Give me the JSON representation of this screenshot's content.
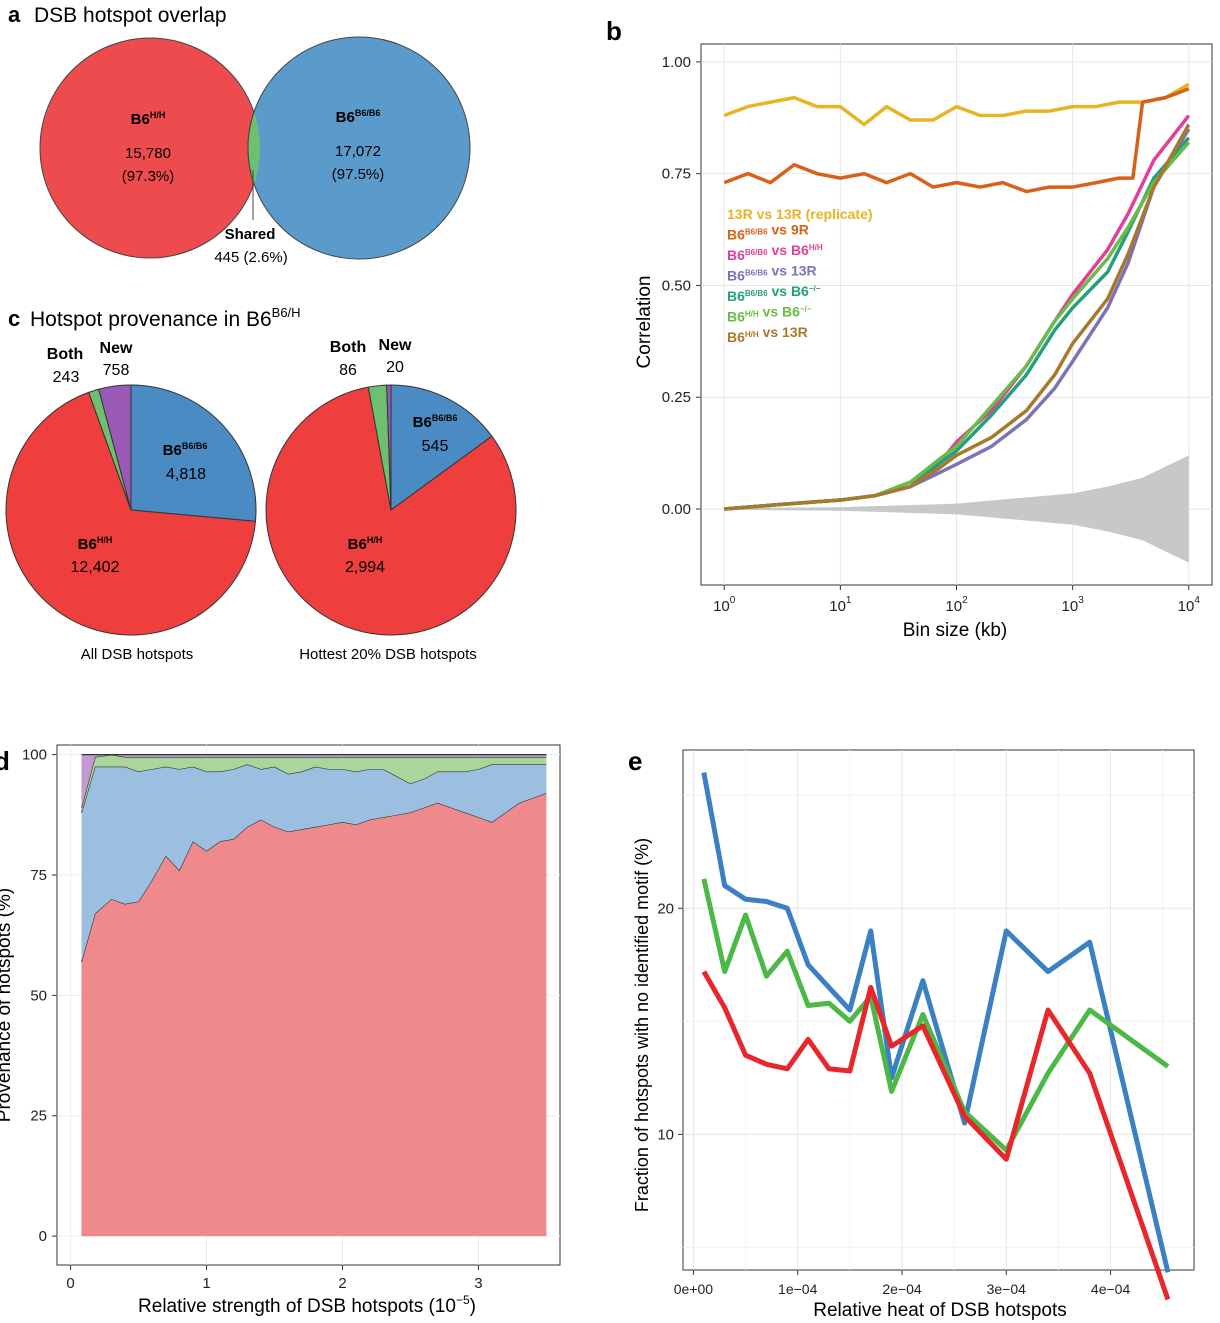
{
  "chart_data": [
    {
      "panel": "a",
      "type": "venn",
      "title": "DSB hotspot overlap",
      "sets": [
        {
          "name_base": "B6",
          "name_sup": "H/H",
          "count": "15,780",
          "pct": "(97.3%)",
          "color": "#ee4b4e"
        },
        {
          "name_base": "B6",
          "name_sup": "B6/B6",
          "count": "17,072",
          "pct": "(97.5%)",
          "color": "#5a9bcc"
        }
      ],
      "overlap": {
        "label": "Shared",
        "value": "445 (2.6%)",
        "color": "#6cc070"
      }
    },
    {
      "panel": "b",
      "type": "line",
      "xlabel": "Bin size (kb)",
      "ylabel": "Correlation",
      "x_scale": "log10",
      "xlim": [
        1,
        10000
      ],
      "ylim": [
        -0.17,
        1.0
      ],
      "yticks": [
        "0.00",
        "0.25",
        "0.50",
        "0.75",
        "1.00"
      ],
      "ytick_values": [
        0,
        0.25,
        0.5,
        0.75,
        1.0
      ],
      "xtick_values": [
        1,
        10,
        100,
        1000,
        10000
      ],
      "xtick_base": "10",
      "xtick_exps": [
        "0",
        "1",
        "2",
        "3",
        "4"
      ],
      "grid": true,
      "legend_position": "upper-left",
      "series": [
        {
          "name": "13R vs 13R (replicate)",
          "color": "#e8b422",
          "x": [
            1,
            1.6,
            2.5,
            4,
            6.3,
            10,
            16,
            25,
            40,
            63,
            100,
            160,
            250,
            400,
            630,
            1000,
            1600,
            2500,
            4000,
            6300,
            10000
          ],
          "y": [
            0.88,
            0.9,
            0.91,
            0.92,
            0.9,
            0.9,
            0.86,
            0.9,
            0.87,
            0.87,
            0.9,
            0.88,
            0.88,
            0.89,
            0.89,
            0.9,
            0.9,
            0.91,
            0.91,
            0.92,
            0.95
          ]
        },
        {
          "name_parts": [
            [
              "B6",
              ""
            ],
            [
              "B6/B6",
              "sup"
            ],
            [
              " vs 9R",
              ""
            ]
          ],
          "color": "#d9601a",
          "x": [
            1,
            1.6,
            2.5,
            4,
            6.3,
            10,
            16,
            25,
            40,
            63,
            100,
            160,
            250,
            400,
            630,
            1000,
            1600,
            2500,
            3300,
            4000,
            6300,
            10000
          ],
          "y": [
            0.73,
            0.75,
            0.73,
            0.77,
            0.75,
            0.74,
            0.75,
            0.73,
            0.75,
            0.72,
            0.73,
            0.72,
            0.73,
            0.71,
            0.72,
            0.72,
            0.73,
            0.74,
            0.74,
            0.91,
            0.92,
            0.94
          ]
        },
        {
          "name_parts": [
            [
              "B6",
              ""
            ],
            [
              "B6/B6",
              "sup"
            ],
            [
              " vs B6",
              ""
            ],
            [
              "H/H",
              "sup"
            ]
          ],
          "color": "#e23f97",
          "x": [
            1,
            3,
            10,
            20,
            40,
            70,
            100,
            200,
            400,
            700,
            1000,
            2000,
            3000,
            5000,
            10000
          ],
          "y": [
            0.0,
            0.01,
            0.02,
            0.03,
            0.05,
            0.1,
            0.15,
            0.22,
            0.32,
            0.42,
            0.48,
            0.58,
            0.66,
            0.78,
            0.88
          ]
        },
        {
          "name_parts": [
            [
              "B6",
              ""
            ],
            [
              "B6/B6",
              "sup"
            ],
            [
              " vs 13R",
              ""
            ]
          ],
          "color": "#7d72b8",
          "x": [
            1,
            3,
            10,
            20,
            40,
            70,
            100,
            200,
            400,
            700,
            1000,
            2000,
            3000,
            5000,
            10000
          ],
          "y": [
            0.0,
            0.01,
            0.02,
            0.03,
            0.05,
            0.08,
            0.1,
            0.14,
            0.2,
            0.27,
            0.33,
            0.45,
            0.55,
            0.72,
            0.85
          ]
        },
        {
          "name_parts": [
            [
              "B6",
              ""
            ],
            [
              "B6/B6",
              "sup"
            ],
            [
              " vs B6",
              ""
            ],
            [
              "−/−",
              "sup"
            ]
          ],
          "color": "#25a07c",
          "x": [
            1,
            3,
            10,
            20,
            40,
            70,
            100,
            200,
            400,
            700,
            1000,
            2000,
            3000,
            5000,
            10000
          ],
          "y": [
            0.0,
            0.01,
            0.02,
            0.03,
            0.06,
            0.1,
            0.13,
            0.21,
            0.3,
            0.4,
            0.45,
            0.53,
            0.62,
            0.74,
            0.83
          ]
        },
        {
          "name_parts": [
            [
              "B6",
              ""
            ],
            [
              "H/H",
              "sup"
            ],
            [
              " vs B6",
              ""
            ],
            [
              "−/−",
              "sup"
            ]
          ],
          "color": "#6bbb4a",
          "x": [
            1,
            3,
            10,
            20,
            40,
            70,
            100,
            200,
            400,
            700,
            1000,
            2000,
            3000,
            5000,
            10000
          ],
          "y": [
            0.0,
            0.01,
            0.02,
            0.03,
            0.06,
            0.11,
            0.14,
            0.23,
            0.32,
            0.42,
            0.47,
            0.56,
            0.63,
            0.73,
            0.82
          ]
        },
        {
          "name_parts": [
            [
              "B6",
              ""
            ],
            [
              "H/H",
              "sup"
            ],
            [
              " vs 13R",
              ""
            ]
          ],
          "color": "#a8792c",
          "x": [
            1,
            3,
            10,
            20,
            40,
            70,
            100,
            200,
            400,
            700,
            1000,
            2000,
            3000,
            5000,
            10000
          ],
          "y": [
            0.0,
            0.01,
            0.02,
            0.03,
            0.05,
            0.09,
            0.12,
            0.16,
            0.22,
            0.3,
            0.37,
            0.47,
            0.57,
            0.72,
            0.86
          ]
        }
      ],
      "null_band": {
        "color": "#c8c8c8",
        "x": [
          1,
          10,
          100,
          1000,
          2000,
          4000,
          10000
        ],
        "upper": [
          0.002,
          0.004,
          0.012,
          0.035,
          0.05,
          0.07,
          0.12
        ],
        "lower": [
          -0.002,
          -0.004,
          -0.012,
          -0.035,
          -0.05,
          -0.07,
          -0.12
        ]
      }
    },
    {
      "panel": "c",
      "type": "pie",
      "title_base": "Hotspot provenance in B6",
      "title_sup": "B6/H",
      "pies": [
        {
          "caption": "All DSB hotspots",
          "slices": [
            {
              "label": "Both",
              "value_text": "243",
              "value": 243,
              "color": "#6cc070"
            },
            {
              "label": "New",
              "value_text": "758",
              "value": 758,
              "color": "#9b59b6"
            },
            {
              "label_base": "B6",
              "label_sup": "B6/B6",
              "value_text": "4,818",
              "value": 4818,
              "color": "#4a8bc4"
            },
            {
              "label_base": "B6",
              "label_sup": "H/H",
              "value_text": "12,402",
              "value": 12402,
              "color": "#ee3e3e"
            }
          ]
        },
        {
          "caption": "Hottest 20% DSB hotspots",
          "slices": [
            {
              "label": "Both",
              "value_text": "86",
              "value": 86,
              "color": "#6cc070"
            },
            {
              "label": "New",
              "value_text": "20",
              "value": 20,
              "color": "#9b59b6"
            },
            {
              "label_base": "B6",
              "label_sup": "B6/B6",
              "value_text": "545",
              "value": 545,
              "color": "#4a8bc4"
            },
            {
              "label_base": "B6",
              "label_sup": "H/H",
              "value_text": "2,994",
              "value": 2994,
              "color": "#ee3e3e"
            }
          ]
        }
      ]
    },
    {
      "panel": "d",
      "type": "area",
      "xlabel": "Relative strength of DSB hotspots (10",
      "xlabel_sup": "−5",
      "xlabel_end": ")",
      "ylabel": "Provenance of hotspots (%)",
      "xlim": [
        -0.1,
        3.6
      ],
      "ylim": [
        -6,
        102
      ],
      "xticks": [
        0,
        1,
        2,
        3
      ],
      "yticks": [
        0,
        25,
        50,
        75,
        100
      ],
      "grid": true,
      "x": [
        0.08,
        0.18,
        0.3,
        0.4,
        0.5,
        0.6,
        0.7,
        0.8,
        0.9,
        1.0,
        1.1,
        1.2,
        1.3,
        1.4,
        1.5,
        1.6,
        1.7,
        1.8,
        1.9,
        2.0,
        2.1,
        2.2,
        2.3,
        2.4,
        2.5,
        2.6,
        2.7,
        2.8,
        2.9,
        3.0,
        3.1,
        3.2,
        3.3,
        3.4,
        3.5
      ],
      "series": [
        {
          "color": "#ef8a8c",
          "values": [
            57,
            67,
            70,
            69,
            69.5,
            74,
            79,
            76,
            82,
            80,
            82,
            82.5,
            85,
            86.5,
            85,
            84,
            84.5,
            85,
            85.5,
            86,
            85.5,
            86.5,
            87,
            87.5,
            88,
            89,
            90,
            89,
            88,
            87,
            86,
            88,
            90,
            91,
            92
          ]
        },
        {
          "color": "#9cbfe1",
          "values": [
            31,
            30.5,
            27.5,
            28.5,
            27,
            23,
            18.5,
            21,
            15.5,
            16.5,
            14.5,
            14.5,
            13,
            10.5,
            12.5,
            12,
            12,
            12.5,
            11.5,
            11,
            11,
            10.5,
            10,
            8,
            6,
            6,
            6.5,
            7.5,
            8.5,
            10,
            12,
            10,
            8,
            7,
            6
          ]
        },
        {
          "color": "#a9d69b",
          "values": [
            1,
            2,
            2.5,
            2,
            3,
            2.5,
            2,
            2.5,
            2,
            3,
            3,
            2.5,
            1.5,
            2.5,
            2,
            3.5,
            3,
            2,
            2.5,
            2.5,
            3,
            2.5,
            2.5,
            4,
            5.5,
            4.5,
            3,
            3,
            3,
            2.5,
            1.5,
            1.5,
            1.5,
            1.5,
            1.5
          ]
        },
        {
          "color": "#c59ad3",
          "values": [
            11,
            0.5,
            0,
            0.5,
            0.5,
            0.5,
            0.5,
            0.5,
            0.5,
            0.5,
            0.5,
            1,
            0.5,
            1,
            0.5,
            0.5,
            0.5,
            0.5,
            0.5,
            0.5,
            0.5,
            0.5,
            0.5,
            0.5,
            0.5,
            0.5,
            0.5,
            0.5,
            0.5,
            0.5,
            0.5,
            0.5,
            0.5,
            0.5,
            0.5
          ]
        }
      ]
    },
    {
      "panel": "e",
      "type": "line",
      "xlabel": "Relative heat of DSB hotspots",
      "ylabel": "Fraction of hotspots with no identified motif (%)",
      "xlim": [
        -1e-05,
        0.00048
      ],
      "ylim": [
        4,
        27
      ],
      "xticks": [
        "0e+00",
        "1e−04",
        "2e−04",
        "3e−04",
        "4e−04"
      ],
      "xtick_values": [
        0,
        0.0001,
        0.0002,
        0.0003,
        0.0004
      ],
      "yticks": [
        "10",
        "20"
      ],
      "ytick_values": [
        10,
        20
      ],
      "grid": true,
      "x": [
        1e-05,
        3e-05,
        5e-05,
        7e-05,
        9e-05,
        0.00011,
        0.00013,
        0.00015,
        0.00017,
        0.00019,
        0.00022,
        0.00026,
        0.0003,
        0.00034,
        0.00038,
        0.000455
      ],
      "series": [
        {
          "color": "#3a80c2",
          "values": [
            26,
            21,
            20.4,
            20.3,
            20,
            17.5,
            16.5,
            15.5,
            19,
            12.5,
            16.8,
            10.5,
            19,
            17.2,
            18.5,
            3.9
          ]
        },
        {
          "color": "#4cb848",
          "values": [
            21.3,
            17.2,
            19.7,
            17,
            18.1,
            15.7,
            15.8,
            15,
            16.1,
            11.9,
            15.3,
            11,
            9.3,
            12.7,
            15.5,
            13
          ]
        },
        {
          "color": "#e8272c",
          "values": [
            17.2,
            15.6,
            13.5,
            13.1,
            12.9,
            14.2,
            12.9,
            12.8,
            16.5,
            13.9,
            14.8,
            10.8,
            8.9,
            15.5,
            12.7,
            2.7
          ]
        }
      ]
    }
  ],
  "panel_letters": {
    "a": "a",
    "b": "b",
    "c": "c",
    "d": "d",
    "e": "e"
  }
}
